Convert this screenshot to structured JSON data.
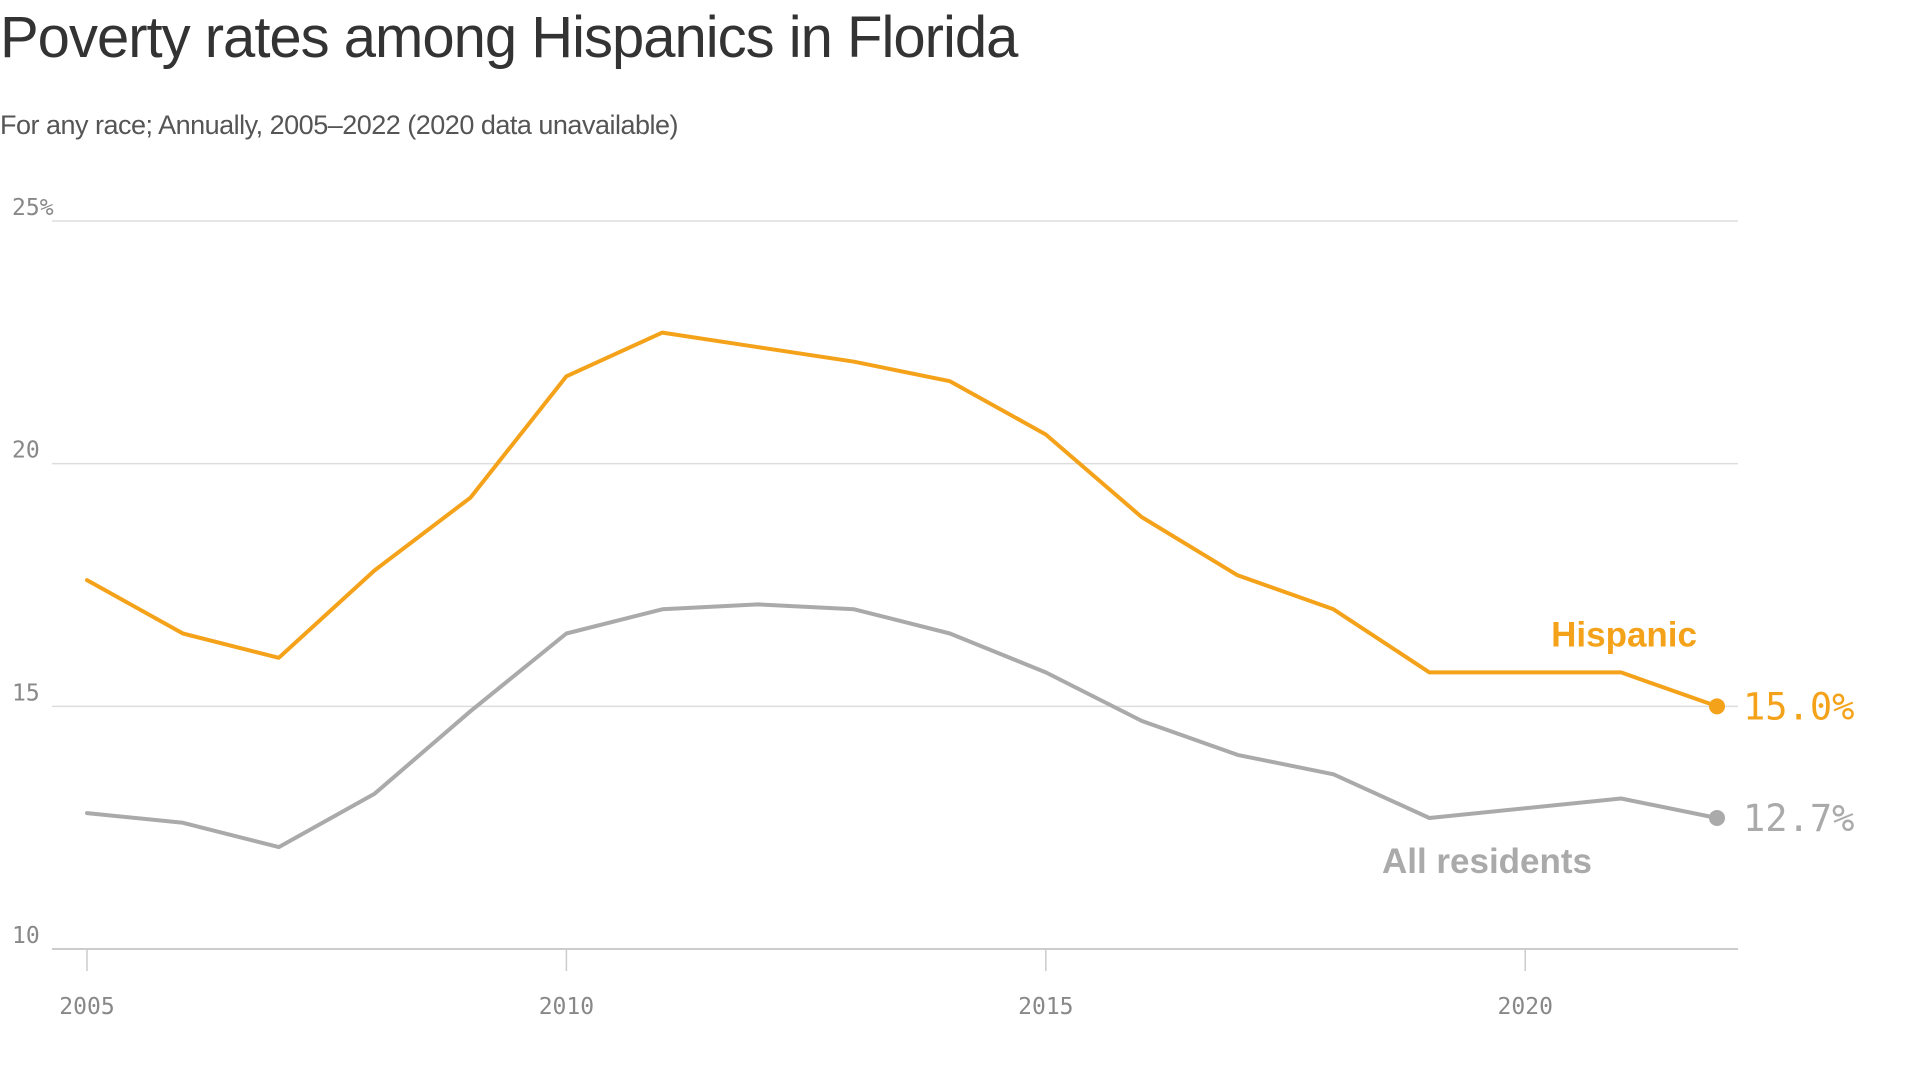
{
  "chart_data": {
    "type": "line",
    "title": "Poverty rates among Hispanics in Florida",
    "subtitle": "For any race; Annually, 2005–2022 (2020 data unavailable)",
    "xlabel": "",
    "ylabel": "",
    "x": [
      2005,
      2006,
      2007,
      2008,
      2009,
      2010,
      2011,
      2012,
      2013,
      2014,
      2015,
      2016,
      2017,
      2018,
      2019,
      2021,
      2022
    ],
    "xlim": [
      2005,
      2022
    ],
    "ylim": [
      10,
      25
    ],
    "x_ticks": [
      {
        "value": 2005,
        "label": "2005"
      },
      {
        "value": 2010,
        "label": "2010"
      },
      {
        "value": 2015,
        "label": "2015"
      },
      {
        "value": 2020,
        "label": "2020"
      }
    ],
    "y_ticks": [
      {
        "value": 25,
        "label": "25%"
      },
      {
        "value": 20,
        "label": "20"
      },
      {
        "value": 15,
        "label": "15"
      },
      {
        "value": 10,
        "label": "10"
      }
    ],
    "grid": true,
    "legend": "direct labels",
    "series": [
      {
        "name": "Hispanic",
        "color": "#f5a21b",
        "values": [
          17.6,
          16.5,
          16.0,
          17.8,
          19.3,
          21.8,
          22.7,
          22.4,
          22.1,
          21.7,
          20.6,
          18.9,
          17.7,
          17.0,
          15.7,
          15.7,
          15.0
        ],
        "end_label": "15.0%"
      },
      {
        "name": "All residents",
        "color": "#aaaaaa",
        "values": [
          12.8,
          12.6,
          12.1,
          13.2,
          14.9,
          16.5,
          17.0,
          17.1,
          17.0,
          16.5,
          15.7,
          14.7,
          14.0,
          13.6,
          12.7,
          13.1,
          12.7
        ],
        "end_label": "12.7%"
      }
    ],
    "axis_color": "#cccccc",
    "grid_color": "#dddddd"
  }
}
